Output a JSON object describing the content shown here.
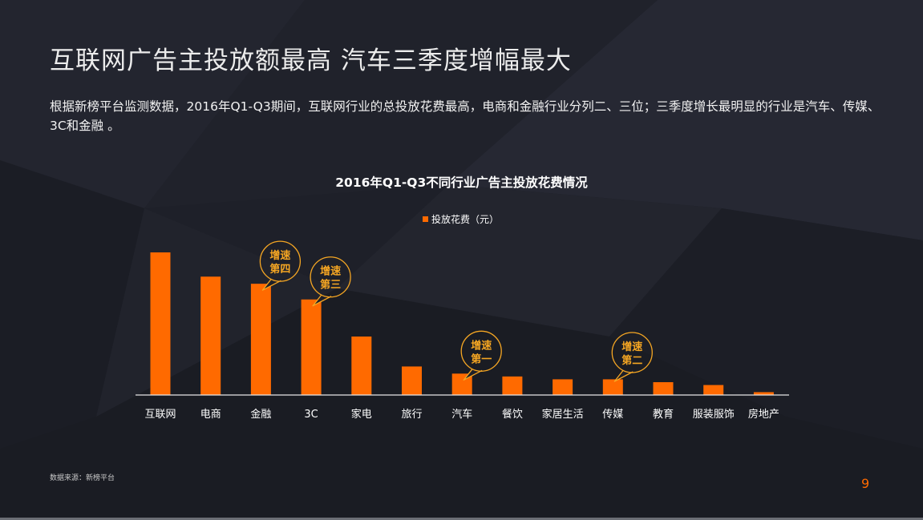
{
  "title": "互联网广告主投放额最高 汽车三季度增幅最大",
  "description": "根据新榜平台监测数据，2016年Q1-Q3期间，互联网行业的总投放花费最高，电商和金融行业分列二、三位；三季度增长最明显的行业是汽车、传媒、3C和金融 。",
  "source": "数据来源：新榜平台",
  "page_number": "9",
  "colors": {
    "bar": "#ff6a00",
    "badge": "#f5a623",
    "background": "#1e2029"
  },
  "chart_data": {
    "type": "bar",
    "title": "2016年Q1-Q3不同行业广告主投放花费情况",
    "categories": [
      "互联网",
      "电商",
      "金融",
      "3C",
      "家电",
      "旅行",
      "汽车",
      "餐饮",
      "家居生活",
      "传媒",
      "教育",
      "服装服饰",
      "房地产"
    ],
    "series": [
      {
        "name": "投放花费（元）",
        "values": [
          100,
          83,
          78,
          67,
          41,
          20,
          15,
          13,
          11,
          11,
          9,
          7,
          2
        ]
      }
    ],
    "ylim": [
      0,
      100
    ],
    "legend": "top-center",
    "grid": false,
    "annotations": [
      {
        "category": "金融",
        "line1": "增速",
        "line2": "第四"
      },
      {
        "category": "3C",
        "line1": "增速",
        "line2": "第三"
      },
      {
        "category": "汽车",
        "line1": "增速",
        "line2": "第一"
      },
      {
        "category": "传媒",
        "line1": "增速",
        "line2": "第二"
      }
    ]
  }
}
